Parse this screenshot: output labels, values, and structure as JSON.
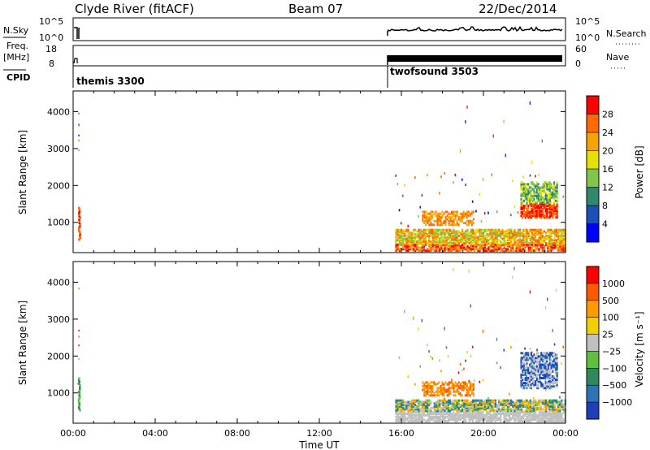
{
  "header": {
    "station": "Clyde River (fitACF)",
    "beam": "Beam 07",
    "date": "22/Dec/2014"
  },
  "param_panels": {
    "nsky_label": "N.Sky",
    "nsky_ticks": [
      "10^5",
      "10^0"
    ],
    "nsearch_label": "N.Search",
    "nsearch_ticks": [
      "10^5",
      "10^0"
    ],
    "freq_label_1": "Freq.",
    "freq_label_2": "[MHz]",
    "freq_ticks": [
      "18",
      "8"
    ],
    "nave_label": "Nave",
    "nave_ticks": [
      "60",
      "0"
    ],
    "cpid_label": "CPID",
    "cpid_segments": [
      "themis 3300",
      "twofsound 3503"
    ]
  },
  "chart_data": [
    {
      "type": "heatmap",
      "ylabel": "Slant Range [km]",
      "yticks": [
        "1000",
        "2000",
        "3000",
        "4000"
      ],
      "ylim": [
        180,
        4560
      ],
      "xlim": [
        0,
        24
      ],
      "colorbar": {
        "label": "Power [dB]",
        "ticks": [
          "28",
          "24",
          "20",
          "16",
          "12",
          "8",
          "4"
        ],
        "colors": [
          "#0000ff",
          "#1e4fb4",
          "#2e8a6a",
          "#7fc64a",
          "#e6e000",
          "#f5a300",
          "#ff6a00",
          "#ff0000"
        ]
      }
    },
    {
      "type": "heatmap",
      "ylabel": "Slant Range [km]",
      "yticks": [
        "1000",
        "2000",
        "3000",
        "4000"
      ],
      "ylim": [
        180,
        4560
      ],
      "xlim": [
        0,
        24
      ],
      "xlabel": "Time UT",
      "xticks": [
        "00:00",
        "04:00",
        "08:00",
        "12:00",
        "16:00",
        "20:00",
        "00:00"
      ],
      "colorbar": {
        "label": "Velocity [m s⁻¹]",
        "ticks": [
          "1000",
          "500",
          "100",
          "25",
          "−25",
          "−100",
          "−500",
          "−1000"
        ],
        "colors": [
          "#1f3fb8",
          "#2a74b8",
          "#2e8a5a",
          "#5fc040",
          "#c0c0c0",
          "#f0d000",
          "#ff9a00",
          "#ff5a00",
          "#ff0000"
        ]
      }
    }
  ]
}
